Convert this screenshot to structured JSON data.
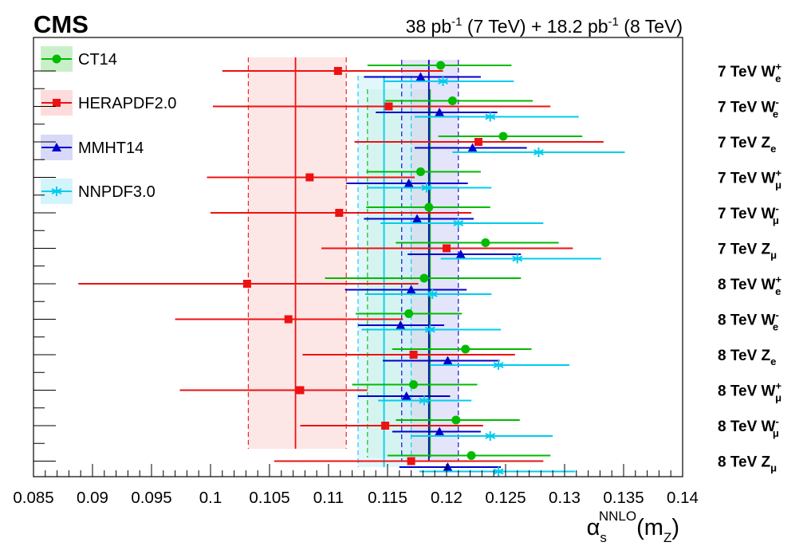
{
  "chart_data": {
    "type": "scatter",
    "experiment_label": "CMS",
    "luminosity_label": {
      "p1": "38 pb",
      "sup1": "-1",
      "p2": " (7 TeV) + 18.2 pb",
      "sup2": "-1",
      "p3": " (8 TeV)"
    },
    "xlabel": {
      "alpha": "α",
      "sub": "s",
      "sup": "NNLO",
      "tail": "(m",
      "zsub": "Z",
      "close": ")"
    },
    "xlim": [
      0.085,
      0.14
    ],
    "xticks": [
      0.085,
      0.09,
      0.095,
      0.1,
      0.105,
      0.11,
      0.115,
      0.12,
      0.125,
      0.13,
      0.135,
      0.14
    ],
    "xtick_labels": [
      "0.085",
      "0.09",
      "0.095",
      "0.1",
      "0.105",
      "0.11",
      "0.115",
      "0.12",
      "0.125",
      "0.13",
      "0.135",
      "0.14"
    ],
    "categories": [
      {
        "energy": "7 TeV",
        "boson": "W",
        "charge": "+",
        "lepton": "e"
      },
      {
        "energy": "7 TeV",
        "boson": "W",
        "charge": "-",
        "lepton": "e"
      },
      {
        "energy": "7 TeV",
        "boson": "Z",
        "charge": "",
        "lepton": "e"
      },
      {
        "energy": "7 TeV",
        "boson": "W",
        "charge": "+",
        "lepton": "μ"
      },
      {
        "energy": "7 TeV",
        "boson": "W",
        "charge": "-",
        "lepton": "μ"
      },
      {
        "energy": "7 TeV",
        "boson": "Z",
        "charge": "",
        "lepton": "μ"
      },
      {
        "energy": "8 TeV",
        "boson": "W",
        "charge": "+",
        "lepton": "e"
      },
      {
        "energy": "8 TeV",
        "boson": "W",
        "charge": "-",
        "lepton": "e"
      },
      {
        "energy": "8 TeV",
        "boson": "Z",
        "charge": "",
        "lepton": "e"
      },
      {
        "energy": "8 TeV",
        "boson": "W",
        "charge": "+",
        "lepton": "μ"
      },
      {
        "energy": "8 TeV",
        "boson": "W",
        "charge": "-",
        "lepton": "μ"
      },
      {
        "energy": "8 TeV",
        "boson": "Z",
        "charge": "",
        "lepton": "μ"
      }
    ],
    "series": [
      {
        "name": "CT14",
        "color": "#00bb00",
        "marker": "circle",
        "values": [
          0.1195,
          0.1205,
          0.1248,
          0.1178,
          0.1185,
          0.1233,
          0.1181,
          0.1168,
          0.1216,
          0.1172,
          0.1208,
          0.1221
        ],
        "err_low": [
          0.1133,
          0.1148,
          0.1193,
          0.1132,
          0.1132,
          0.1157,
          0.1097,
          0.1123,
          0.1154,
          0.112,
          0.1157,
          0.115
        ],
        "err_high": [
          0.1255,
          0.1273,
          0.1315,
          0.1229,
          0.1237,
          0.1295,
          0.1263,
          0.1213,
          0.1272,
          0.1226,
          0.1262,
          0.1288
        ],
        "band": {
          "center": 0.1186,
          "low": 0.1133,
          "high": 0.1186,
          "fill": "#c8f0c8"
        }
      },
      {
        "name": "HERAPDF2.0",
        "color": "#ee1111",
        "marker": "square",
        "values": [
          0.1108,
          0.1151,
          0.1227,
          0.1084,
          0.1109,
          0.12,
          0.1031,
          0.1066,
          0.1172,
          0.1076,
          0.1148,
          0.117
        ],
        "err_low": [
          0.101,
          0.1002,
          0.1122,
          0.0997,
          0.1,
          0.1094,
          0.0888,
          0.097,
          0.1078,
          0.0974,
          0.1076,
          0.1054
        ],
        "err_high": [
          0.1197,
          0.1288,
          0.1333,
          0.1173,
          0.1221,
          0.1307,
          0.1176,
          0.1163,
          0.1258,
          0.1133,
          0.1231,
          0.1282
        ],
        "band": {
          "center": 0.1072,
          "low": 0.1032,
          "high": 0.1115,
          "fill": "#fcdcdc"
        }
      },
      {
        "name": "MMHT14",
        "color": "#0000cc",
        "marker": "triangle",
        "values": [
          0.1178,
          0.1194,
          0.1222,
          0.1168,
          0.1175,
          0.1212,
          0.117,
          0.1161,
          0.1201,
          0.1166,
          0.1194,
          0.1201
        ],
        "err_low": [
          0.113,
          0.114,
          0.1173,
          0.1115,
          0.113,
          0.1167,
          0.1114,
          0.1125,
          0.1146,
          0.1125,
          0.1154,
          0.116
        ],
        "err_high": [
          0.1229,
          0.1243,
          0.1268,
          0.1218,
          0.1223,
          0.1263,
          0.1217,
          0.1198,
          0.1245,
          0.1203,
          0.1229,
          0.1246
        ],
        "band": {
          "center": 0.1185,
          "low": 0.1162,
          "high": 0.121,
          "fill": "#d8d8f8"
        }
      },
      {
        "name": "NNPDF3.0",
        "color": "#00ccee",
        "marker": "star",
        "values": [
          0.1197,
          0.1237,
          0.1278,
          0.1183,
          0.121,
          0.126,
          0.1188,
          0.1186,
          0.1244,
          0.1181,
          0.1237,
          0.1244
        ],
        "err_low": [
          0.1147,
          0.1173,
          0.1205,
          0.1133,
          0.1144,
          0.1195,
          0.1131,
          0.1128,
          0.1186,
          0.1142,
          0.117,
          0.1177
        ],
        "err_high": [
          0.1257,
          0.1312,
          0.1351,
          0.1238,
          0.1282,
          0.1331,
          0.1238,
          0.1246,
          0.1304,
          0.1221,
          0.129,
          0.1309
        ],
        "band": {
          "center": 0.1147,
          "low": 0.1125,
          "high": 0.117,
          "fill": "#d4f4fb"
        }
      }
    ]
  }
}
